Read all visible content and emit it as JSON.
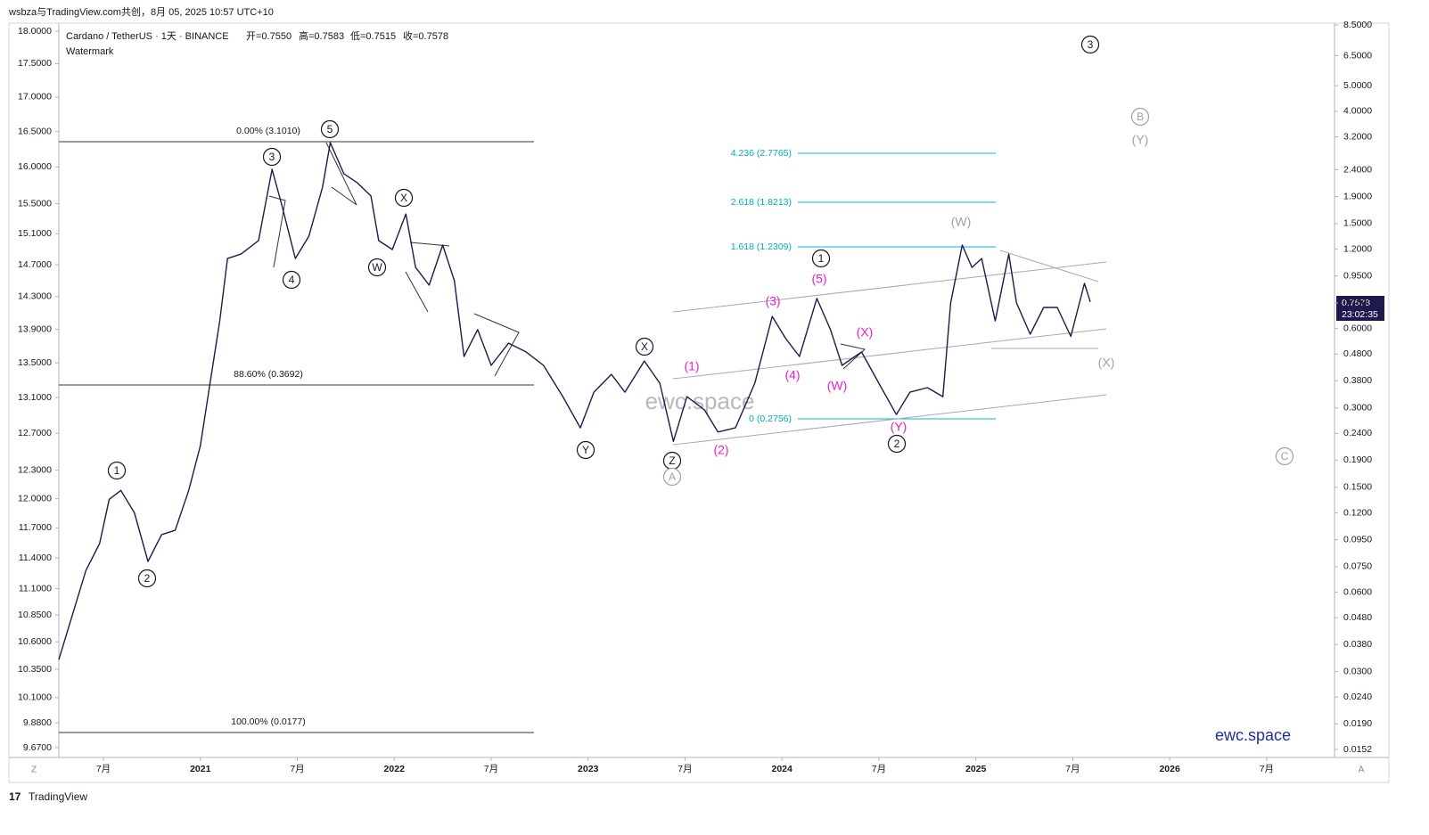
{
  "chart_data": {
    "type": "line",
    "header": "wsbza与TradingView.com共创，8月 05, 2025 10:57 UTC+10",
    "symbol": "Cardano / TetherUS · 1天 · BINANCE",
    "ohlc": [
      "开=0.7550",
      "高=0.7583",
      "低=0.7515",
      "收=0.7578"
    ],
    "indicator": "Watermark",
    "watermark": "ewc.space",
    "brand": "ewc.space",
    "countdown": "23:02:35",
    "footer": "TradingView",
    "scale_buttons": [
      "Z",
      "A"
    ],
    "log_scale": true,
    "xlim": [
      2020.27,
      2026.85
    ],
    "xticks": [
      {
        "value": 2020.5,
        "label": "7月"
      },
      2021,
      {
        "value": 2021.5,
        "label": "7月"
      },
      2022,
      {
        "value": 2022.5,
        "label": "7月"
      },
      2023,
      {
        "value": 2023.5,
        "label": "7月"
      },
      2024,
      {
        "value": 2024.5,
        "label": "7月"
      },
      2025,
      {
        "value": 2025.5,
        "label": "7月"
      },
      2026,
      {
        "value": 2026.5,
        "label": "7月"
      }
    ],
    "ylim": [
      9.67,
      18
    ],
    "yticks": [
      {
        "value": 18,
        "label": "18.0000"
      },
      {
        "value": 17.5,
        "label": "17.5000"
      },
      {
        "value": 17,
        "label": "17.0000"
      },
      {
        "value": 16.5,
        "label": "16.5000"
      },
      {
        "value": 16,
        "label": "16.0000"
      },
      {
        "value": 15.5,
        "label": "15.5000"
      },
      {
        "value": 15.1,
        "label": "15.1000"
      },
      {
        "value": 14.7,
        "label": "14.7000"
      },
      {
        "value": 14.3,
        "label": "14.3000"
      },
      {
        "value": 13.9,
        "label": "13.9000"
      },
      {
        "value": 13.5,
        "label": "13.5000"
      },
      {
        "value": 13.1,
        "label": "13.1000"
      },
      {
        "value": 12.7,
        "label": "12.7000"
      },
      {
        "value": 12.3,
        "label": "12.3000"
      },
      {
        "value": 12,
        "label": "12.0000"
      },
      {
        "value": 11.7,
        "label": "11.7000"
      },
      {
        "value": 11.4,
        "label": "11.4000"
      },
      {
        "value": 11.1,
        "label": "11.1000"
      },
      {
        "value": 10.85,
        "label": "10.8500"
      },
      {
        "value": 10.6,
        "label": "10.6000"
      },
      {
        "value": 10.35,
        "label": "10.3500"
      },
      {
        "value": 10.1,
        "label": "10.1000"
      },
      {
        "value": 9.88,
        "label": "9.8800"
      },
      {
        "value": 9.67,
        "label": "9.6700"
      }
    ],
    "y2lim": [
      0.0152,
      8.5
    ],
    "y2ticks": [
      {
        "value": 8.5,
        "label": "8.5000"
      },
      {
        "value": 6.5,
        "label": "6.5000"
      },
      {
        "value": 5,
        "label": "5.0000"
      },
      {
        "value": 4,
        "label": "4.0000"
      },
      {
        "value": 3.2,
        "label": "3.2000"
      },
      {
        "value": 2.4,
        "label": "2.4000"
      },
      {
        "value": 1.9,
        "label": "1.9000"
      },
      {
        "value": 1.5,
        "label": "1.5000"
      },
      {
        "value": 1.2,
        "label": "1.2000"
      },
      {
        "value": 0.95,
        "label": "0.9500"
      },
      {
        "value": 0.75,
        "label": "0.7500"
      },
      {
        "value": 0.6,
        "label": "0.6000"
      },
      {
        "value": 0.48,
        "label": "0.4800"
      },
      {
        "value": 0.38,
        "label": "0.3800"
      },
      {
        "value": 0.3,
        "label": "0.3000"
      },
      {
        "value": 0.24,
        "label": "0.2400"
      },
      {
        "value": 0.19,
        "label": "0.1900"
      },
      {
        "value": 0.15,
        "label": "0.1500"
      },
      {
        "value": 0.12,
        "label": "0.1200"
      },
      {
        "value": 0.095,
        "label": "0.0950"
      },
      {
        "value": 0.075,
        "label": "0.0750"
      },
      {
        "value": 0.06,
        "label": "0.0600"
      },
      {
        "value": 0.048,
        "label": "0.0480"
      },
      {
        "value": 0.038,
        "label": "0.0380"
      },
      {
        "value": 0.03,
        "label": "0.0300"
      },
      {
        "value": 0.024,
        "label": "0.0240"
      },
      {
        "value": 0.019,
        "label": "0.0190"
      },
      {
        "value": 0.0152,
        "label": "0.0152"
      }
    ],
    "series": [
      {
        "name": "Cardano / TetherUS",
        "color": "#1e1a4d",
        "axis": "y2",
        "x": [
          2020.27,
          2020.34,
          2020.41,
          2020.48,
          2020.53,
          2020.59,
          2020.66,
          2020.73,
          2020.8,
          2020.87,
          2020.94,
          2021.0,
          2021.05,
          2021.1,
          2021.14,
          2021.21,
          2021.3,
          2021.37,
          2021.42,
          2021.49,
          2021.56,
          2021.63,
          2021.67,
          2021.74,
          2021.81,
          2021.88,
          2021.92,
          2021.99,
          2022.06,
          2022.11,
          2022.18,
          2022.25,
          2022.31,
          2022.36,
          2022.43,
          2022.5,
          2022.59,
          2022.68,
          2022.77,
          2022.87,
          2022.96,
          2023.03,
          2023.12,
          2023.19,
          2023.29,
          2023.37,
          2023.44,
          2023.51,
          2023.6,
          2023.67,
          2023.76,
          2023.86,
          2023.95,
          2024.02,
          2024.09,
          2024.18,
          2024.25,
          2024.31,
          2024.41,
          2024.5,
          2024.59,
          2024.66,
          2024.75,
          2024.83,
          2024.87,
          2024.93,
          2024.98,
          2025.03,
          2025.1,
          2025.17,
          2025.21,
          2025.28,
          2025.35,
          2025.42,
          2025.49,
          2025.56,
          2025.59
        ],
        "values": [
          0.0333,
          0.0492,
          0.0726,
          0.0917,
          0.135,
          0.146,
          0.12,
          0.0785,
          0.0992,
          0.103,
          0.146,
          0.216,
          0.372,
          0.641,
          1.106,
          1.15,
          1.293,
          2.41,
          1.765,
          1.106,
          1.344,
          2.06,
          3.04,
          2.32,
          2.14,
          1.91,
          1.293,
          1.196,
          1.632,
          1.023,
          0.876,
          1.244,
          0.911,
          0.47,
          0.594,
          0.435,
          0.528,
          0.489,
          0.435,
          0.331,
          0.252,
          0.344,
          0.402,
          0.344,
          0.452,
          0.372,
          0.224,
          0.331,
          0.295,
          0.243,
          0.252,
          0.372,
          0.667,
          0.549,
          0.47,
          0.78,
          0.594,
          0.435,
          0.489,
          0.372,
          0.283,
          0.344,
          0.358,
          0.331,
          0.75,
          1.244,
          1.023,
          1.106,
          0.641,
          1.15,
          0.75,
          0.571,
          0.721,
          0.721,
          0.56,
          0.89,
          0.7578
        ]
      }
    ],
    "fib_levels": [
      "0.00% (3.1010)",
      "88.60% (0.3692)",
      "100.00% (0.0177)",
      "4.236 (2.7765)",
      "2.618 (1.8213)",
      "1.618 (1.2309)",
      "0 (0.2756)"
    ],
    "annotations": [
      "1",
      "2",
      "3",
      "4",
      "5",
      "W",
      "X",
      "Y",
      "X",
      "Z",
      "A",
      "1",
      "2",
      "3",
      "B",
      "C",
      "(1)",
      "(2)",
      "(3)",
      "(4)",
      "(5)",
      "(X)",
      "(W)",
      "(Y)",
      "(W)",
      "(Y)",
      "(X)"
    ]
  }
}
